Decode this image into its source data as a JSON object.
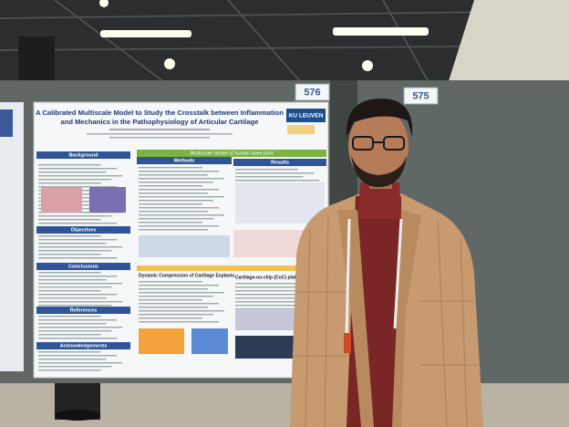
{
  "booth_numbers": [
    "576",
    "575"
  ],
  "poster": {
    "title_lines": [
      "A Calibrated Multiscale Model to Study the Crosstalk between Inflammation",
      "and Mechanics in the Pathophysiology of Articular Cartilage"
    ],
    "logo": "KU LEUVEN",
    "sections": [
      "Background",
      "Objectives",
      "Conclusions",
      "References",
      "Acknowledgements",
      "Methods",
      "Results"
    ],
    "bands": [
      "Multiscale model of human knee joint"
    ],
    "subsections": [
      "Dynamic Compression of Cartilage Explants",
      "Cartilage-on-chip (CoC) platform"
    ]
  }
}
